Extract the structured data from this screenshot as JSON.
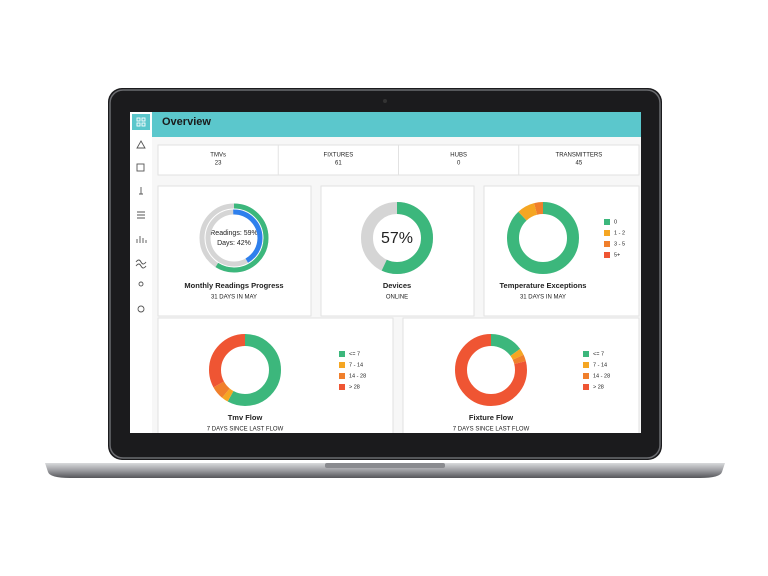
{
  "header": {
    "title": "Overview"
  },
  "stats": [
    {
      "label": "TMVs",
      "value": 23
    },
    {
      "label": "FIXTURES",
      "value": 61
    },
    {
      "label": "HUBS",
      "value": 0
    },
    {
      "label": "TRANSMITTERS",
      "value": 45
    }
  ],
  "cards": [
    {
      "title": "Monthly Readings Progress",
      "subtitle": "31 DAYS IN MAY",
      "chart_data": {
        "type": "rings",
        "series": [
          {
            "value": 59,
            "value_label": "Readings: 59%",
            "color": "#3cb77c"
          },
          {
            "value": 42,
            "value_label": "Days: 42%",
            "color": "#2f80ed"
          }
        ]
      }
    },
    {
      "title": "Devices",
      "subtitle": "ONLINE",
      "chart_data": {
        "type": "gauge",
        "value": 57,
        "value_label": "57%",
        "color": "#3cb77c"
      }
    },
    {
      "title": "Temperature Exceptions",
      "subtitle": "31 DAYS IN MAY",
      "chart_data": {
        "type": "donut",
        "series": [
          {
            "name": "0",
            "value": 88,
            "color": "#3cb77c"
          },
          {
            "name": "1 - 2",
            "value": 8,
            "color": "#f5a623"
          },
          {
            "name": "3 - 5",
            "value": 4,
            "color": "#f07f2c"
          },
          {
            "name": "5+",
            "value": 0,
            "color": "#ef5533"
          }
        ]
      }
    },
    {
      "title": "Tmv Flow",
      "subtitle": "7 DAYS SINCE LAST FLOW",
      "chart_data": {
        "type": "donut",
        "series": [
          {
            "name": "<= 7",
            "value": 58,
            "color": "#3cb77c"
          },
          {
            "name": "7 - 14",
            "value": 3,
            "color": "#f5a623"
          },
          {
            "name": "14 - 28",
            "value": 6,
            "color": "#f07f2c"
          },
          {
            "name": "> 28",
            "value": 33,
            "color": "#ef5533"
          }
        ]
      }
    },
    {
      "title": "Fixture Flow",
      "subtitle": "7 DAYS SINCE LAST FLOW",
      "chart_data": {
        "type": "donut",
        "series": [
          {
            "name": "<= 7",
            "value": 15,
            "color": "#3cb77c"
          },
          {
            "name": "7 - 14",
            "value": 3,
            "color": "#f5a623"
          },
          {
            "name": "14 - 28",
            "value": 3,
            "color": "#f07f2c"
          },
          {
            "name": "> 28",
            "value": 79,
            "color": "#ef5533"
          }
        ]
      }
    }
  ]
}
